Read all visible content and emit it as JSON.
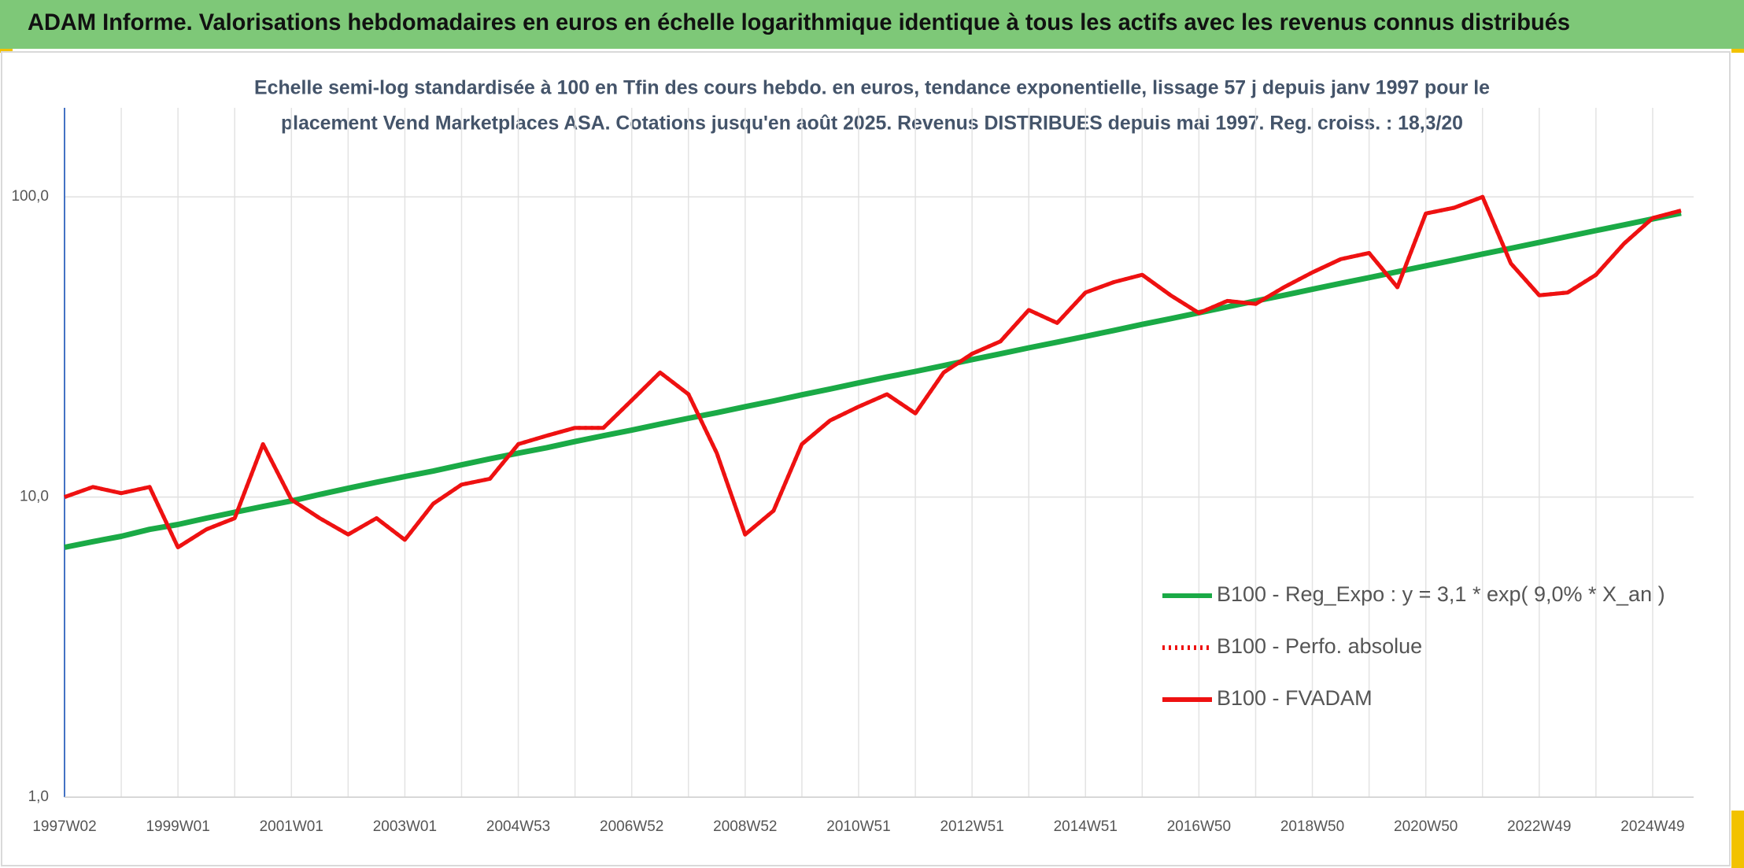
{
  "chart_data": {
    "type": "line",
    "title": "ADAM Informe. Valorisations hebdomadaires en euros en échelle logarithmique identique à tous les actifs avec les revenus connus distribués",
    "subtitle": [
      "Echelle semi-log standardisée à 100 en Tfin des cours hebdo. en euros, tendance exponentielle, lissage 57 j depuis janv 1997 pour le",
      "placement Vend Marketplaces ASA. Cotations jusqu'en août 2025. Revenus DISTRIBUES depuis mai 1997. Reg. croiss. : 18,3/20"
    ],
    "categories": [
      "1997W02",
      null,
      null,
      null,
      "1999W01",
      null,
      null,
      null,
      "2001W01",
      null,
      null,
      null,
      "2003W01",
      null,
      null,
      null,
      "2004W53",
      null,
      null,
      null,
      "2006W52",
      null,
      null,
      null,
      "2008W52",
      null,
      null,
      null,
      "2010W51",
      null,
      null,
      null,
      "2012W51",
      null,
      null,
      null,
      "2014W51",
      null,
      null,
      null,
      "2016W50",
      null,
      null,
      null,
      "2018W50",
      null,
      null,
      null,
      "2020W50",
      null,
      null,
      null,
      "2022W49",
      null,
      null,
      null,
      "2024W49",
      null
    ],
    "series": [
      {
        "name": "B100 - Reg_Expo : y = 3,1 * exp( 9,0% *  X_an )",
        "color": "#1aaa46",
        "style": "solid",
        "values": [
          6.8,
          7.1,
          7.4,
          7.8,
          8.1,
          8.5,
          8.9,
          9.3,
          9.7,
          10.2,
          10.7,
          11.2,
          11.7,
          12.2,
          12.8,
          13.4,
          14.0,
          14.6,
          15.3,
          16.0,
          16.7,
          17.5,
          18.3,
          19.1,
          20.0,
          20.9,
          21.9,
          22.9,
          24.0,
          25.1,
          26.2,
          27.4,
          28.7,
          30.0,
          31.4,
          32.8,
          34.3,
          35.9,
          37.6,
          39.3,
          41.1,
          43.0,
          45.0,
          47.0,
          49.2,
          51.5,
          53.8,
          56.3,
          58.9,
          61.6,
          64.5,
          67.4,
          70.5,
          73.8,
          77.2,
          80.7,
          84.4,
          88.3
        ]
      },
      {
        "name": "B100 - Perfo. absolue",
        "color": "#ee1111",
        "style": "dotted",
        "values": [
          10.0,
          10.8,
          10.3,
          10.8,
          6.8,
          7.8,
          8.5,
          15,
          9.8,
          8.5,
          7.5,
          8.5,
          7.2,
          9.5,
          11,
          11.5,
          15,
          16,
          17,
          17,
          21,
          26,
          22,
          14,
          7.5,
          9,
          15,
          18,
          20,
          22,
          19,
          26,
          30,
          33,
          42,
          38,
          48,
          52,
          55,
          47,
          41,
          45,
          44,
          50,
          56,
          62,
          65,
          50,
          88,
          92,
          100,
          60,
          47,
          48,
          55,
          70,
          85,
          90
        ]
      },
      {
        "name": "B100 - FVADAM",
        "color": "#ee1111",
        "style": "solid",
        "values": [
          10.0,
          10.8,
          10.3,
          10.8,
          6.8,
          7.8,
          8.5,
          15,
          9.8,
          8.5,
          7.5,
          8.5,
          7.2,
          9.5,
          11,
          11.5,
          15,
          16,
          17,
          17,
          21,
          26,
          22,
          14,
          7.5,
          9,
          15,
          18,
          20,
          22,
          19,
          26,
          30,
          33,
          42,
          38,
          48,
          52,
          55,
          47,
          41,
          45,
          44,
          50,
          56,
          62,
          65,
          50,
          88,
          92,
          100,
          60,
          47,
          48,
          55,
          70,
          85,
          90
        ]
      }
    ],
    "log_scale": true,
    "ylim": [
      1,
      198
    ],
    "yticks": [
      {
        "value": 1,
        "label": "1,0"
      },
      {
        "value": 10,
        "label": "10,0"
      },
      {
        "value": 100,
        "label": "100,0"
      }
    ],
    "grid": true
  }
}
